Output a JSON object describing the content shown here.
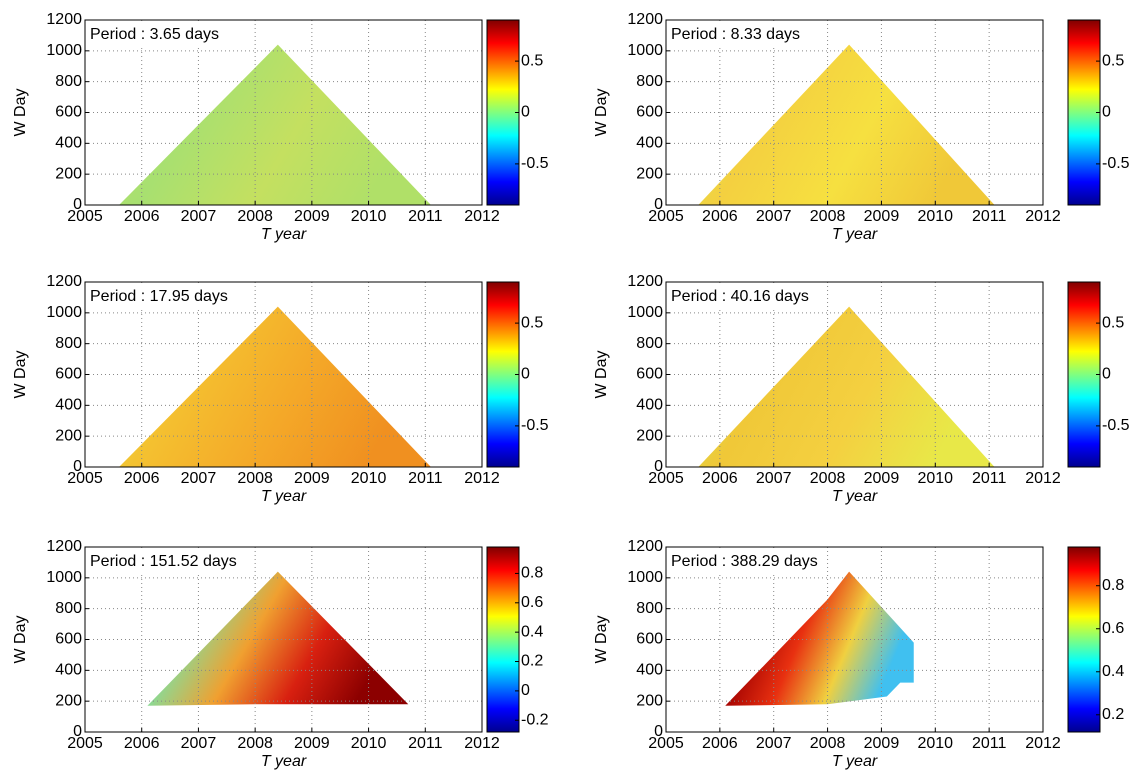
{
  "chart_data": [
    {
      "type": "heatmap",
      "annotation": "Period : 3.65 days",
      "xlabel": "T year",
      "ylabel": "W Day",
      "xlim": [
        2005,
        2012
      ],
      "xticks": [
        2005,
        2006,
        2007,
        2008,
        2009,
        2010,
        2011,
        2012
      ],
      "ylim": [
        0,
        1200
      ],
      "yticks": [
        0,
        200,
        400,
        600,
        800,
        1000,
        1200
      ],
      "grid": true,
      "region": {
        "x": [
          2005.6,
          2008.4,
          2011.1
        ],
        "y": [
          0,
          1040,
          0
        ]
      },
      "fill": [
        "#b4e46c",
        "#a8e070",
        "#c4e060",
        "#b0e068"
      ],
      "colormap": "jet",
      "clim": [
        -0.9,
        0.9
      ],
      "cticks": [
        -0.5,
        0,
        0.5
      ]
    },
    {
      "type": "heatmap",
      "annotation": "Period : 8.33 days",
      "xlabel": "T year",
      "ylabel": "W Day",
      "xlim": [
        2005,
        2012
      ],
      "xticks": [
        2005,
        2006,
        2007,
        2008,
        2009,
        2010,
        2011,
        2012
      ],
      "ylim": [
        0,
        1200
      ],
      "yticks": [
        0,
        200,
        400,
        600,
        800,
        1000,
        1200
      ],
      "grid": true,
      "region": {
        "x": [
          2005.6,
          2008.4,
          2011.1
        ],
        "y": [
          0,
          1040,
          0
        ]
      },
      "fill": [
        "#d8e850",
        "#f4d040",
        "#f6e040",
        "#f0c838"
      ],
      "colormap": "jet",
      "clim": [
        -0.9,
        0.9
      ],
      "cticks": [
        -0.5,
        0,
        0.5
      ]
    },
    {
      "type": "heatmap",
      "annotation": "Period : 17.95 days",
      "xlabel": "T year",
      "ylabel": "W Day",
      "xlim": [
        2005,
        2012
      ],
      "xticks": [
        2005,
        2006,
        2007,
        2008,
        2009,
        2010,
        2011,
        2012
      ],
      "ylim": [
        0,
        1200
      ],
      "yticks": [
        0,
        200,
        400,
        600,
        800,
        1000,
        1200
      ],
      "grid": true,
      "region": {
        "x": [
          2005.6,
          2008.4,
          2011.1
        ],
        "y": [
          0,
          1040,
          0
        ]
      },
      "fill": [
        "#e8e040",
        "#f4c030",
        "#f4a828",
        "#f09020"
      ],
      "colormap": "jet",
      "clim": [
        -0.9,
        0.9
      ],
      "cticks": [
        -0.5,
        0,
        0.5
      ]
    },
    {
      "type": "heatmap",
      "annotation": "Period : 40.16 days",
      "xlabel": "T year",
      "ylabel": "W Day",
      "xlim": [
        2005,
        2012
      ],
      "xticks": [
        2005,
        2006,
        2007,
        2008,
        2009,
        2010,
        2011,
        2012
      ],
      "ylim": [
        0,
        1200
      ],
      "yticks": [
        0,
        200,
        400,
        600,
        800,
        1000,
        1200
      ],
      "grid": true,
      "region": {
        "x": [
          2005.6,
          2008.4,
          2011.1
        ],
        "y": [
          0,
          1040,
          0
        ]
      },
      "fill": [
        "#c8e858",
        "#f0c838",
        "#f4d040",
        "#e8e848"
      ],
      "colormap": "jet",
      "clim": [
        -0.9,
        0.9
      ],
      "cticks": [
        -0.5,
        0,
        0.5
      ]
    },
    {
      "type": "heatmap",
      "annotation": "Period : 151.52 days",
      "xlabel": "T year",
      "ylabel": "W Day",
      "xlim": [
        2005,
        2012
      ],
      "xticks": [
        2005,
        2006,
        2007,
        2008,
        2009,
        2010,
        2011,
        2012
      ],
      "ylim": [
        0,
        1200
      ],
      "yticks": [
        0,
        200,
        400,
        600,
        800,
        1000,
        1200
      ],
      "grid": true,
      "region": {
        "x": [
          2006.1,
          2008.4,
          2010.7,
          2008.0
        ],
        "y": [
          170,
          1040,
          180,
          180
        ]
      },
      "fill": [
        "#40c0e0",
        "#80e0a0",
        "#f0a030",
        "#d82010",
        "#8c0000"
      ],
      "colormap": "jet",
      "clim": [
        -0.28,
        0.98
      ],
      "cticks": [
        -0.2,
        0,
        0.2,
        0.4,
        0.6,
        0.8
      ]
    },
    {
      "type": "heatmap",
      "annotation": "Period : 388.29 days",
      "xlabel": "T year",
      "ylabel": "W Day",
      "xlim": [
        2005,
        2012
      ],
      "xticks": [
        2005,
        2006,
        2007,
        2008,
        2009,
        2010,
        2011,
        2012
      ],
      "ylim": [
        0,
        1200
      ],
      "yticks": [
        0,
        200,
        400,
        600,
        800,
        1000,
        1200
      ],
      "grid": true,
      "region": {
        "x": [
          2006.1,
          2008.0,
          2008.4,
          2009.6,
          2009.6,
          2009.35,
          2009.1,
          2008.0
        ],
        "y": [
          170,
          860,
          1040,
          580,
          320,
          320,
          230,
          180
        ]
      },
      "fill": [
        "#8c0000",
        "#a00000",
        "#e83010",
        "#f0d040",
        "#40c0f0"
      ],
      "colormap": "jet",
      "clim": [
        0.12,
        0.98
      ],
      "cticks": [
        0.2,
        0.4,
        0.6,
        0.8
      ]
    }
  ]
}
